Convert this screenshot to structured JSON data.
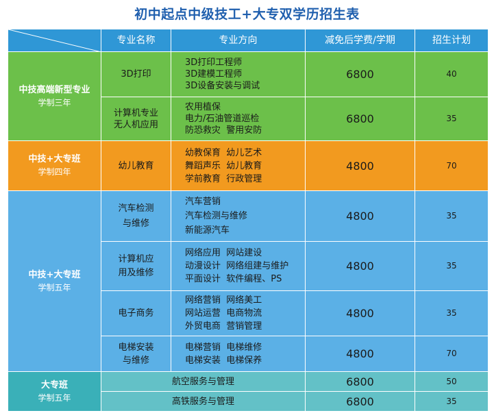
{
  "title": "初中起点中级技工+大专双学历招生表",
  "header": {
    "major": "专业名称",
    "direction": "专业方向",
    "fee": "减免后学费/学期",
    "plan": "招生计划"
  },
  "groups": {
    "g1": {
      "name": "中技高端新型专业",
      "years": "学制三年"
    },
    "g2": {
      "name": "中技+大专班",
      "years": "学制四年"
    },
    "g3": {
      "name": "中技+大专班",
      "years": "学制五年"
    },
    "g4": {
      "name": "大专班",
      "years": "学制五年"
    }
  },
  "rows": [
    {
      "major": [
        "3D打印"
      ],
      "dirs": [
        "3D打印工程师",
        "3D建模工程师",
        "3D设备安装与调试"
      ],
      "fee": "6800",
      "plan": "40"
    },
    {
      "major": [
        "计算机专业",
        "无人机应用"
      ],
      "dirs": [
        "农用植保",
        "电力/石油管道巡检",
        "防恐救灾  警用安防"
      ],
      "fee": "6800",
      "plan": "35"
    },
    {
      "major": [
        "幼儿教育"
      ],
      "dirs": [
        "幼教保育  幼儿艺术",
        "舞蹈声乐  幼儿教育",
        "学前教育  行政管理"
      ],
      "fee": "4800",
      "plan": "70"
    },
    {
      "major": [
        "汽车检测",
        "与维修"
      ],
      "dirs": [
        "汽车营销",
        "汽车检测与维修",
        "新能源汽车"
      ],
      "fee": "4800",
      "plan": "35"
    },
    {
      "major": [
        "计算机应",
        "用及维修"
      ],
      "dirs": [
        "网络应用  网站建设",
        "动漫设计  网络组建与维护",
        "平面设计  软件编程、PS"
      ],
      "fee": "4800",
      "plan": "35"
    },
    {
      "major": [
        "电子商务"
      ],
      "dirs": [
        "网络营销  网络美工",
        "网站运营  电商物流",
        "外贸电商  营销管理"
      ],
      "fee": "4800",
      "plan": "35"
    },
    {
      "major": [
        "电梯安装",
        "与维修"
      ],
      "dirs": [
        "电梯营销  电梯维修",
        "电梯安装  电梯保养"
      ],
      "fee": "4800",
      "plan": "70"
    },
    {
      "merged": "航空服务与管理",
      "fee": "6800",
      "plan": "50"
    },
    {
      "merged": "高铁服务与管理",
      "fee": "6800",
      "plan": "35"
    }
  ]
}
